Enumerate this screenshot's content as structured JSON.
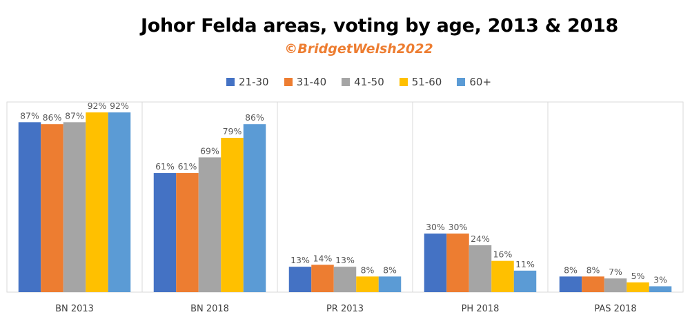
{
  "chart_data": {
    "type": "bar",
    "title": "Johor Felda areas, voting by age, 2013 & 2018",
    "subtitle": "©BridgetWelsh2022",
    "categories": [
      "BN 2013",
      "BN 2018",
      "PR 2013",
      "PH 2018",
      "PAS 2018"
    ],
    "series": [
      {
        "name": "21-30",
        "color": "#4472c4",
        "values": [
          87,
          61,
          13,
          30,
          8
        ]
      },
      {
        "name": "31-40",
        "color": "#ed7d31",
        "values": [
          86,
          61,
          14,
          30,
          8
        ]
      },
      {
        "name": "41-50",
        "color": "#a5a5a5",
        "values": [
          87,
          69,
          13,
          24,
          7
        ]
      },
      {
        "name": "51-60",
        "color": "#ffc000",
        "values": [
          92,
          79,
          8,
          16,
          5
        ]
      },
      {
        "name": "60+",
        "color": "#5b9bd5",
        "values": [
          92,
          86,
          8,
          11,
          3
        ]
      }
    ],
    "value_suffix": "%",
    "ylim": [
      0,
      100
    ],
    "grid": false,
    "legend": "top-center"
  }
}
